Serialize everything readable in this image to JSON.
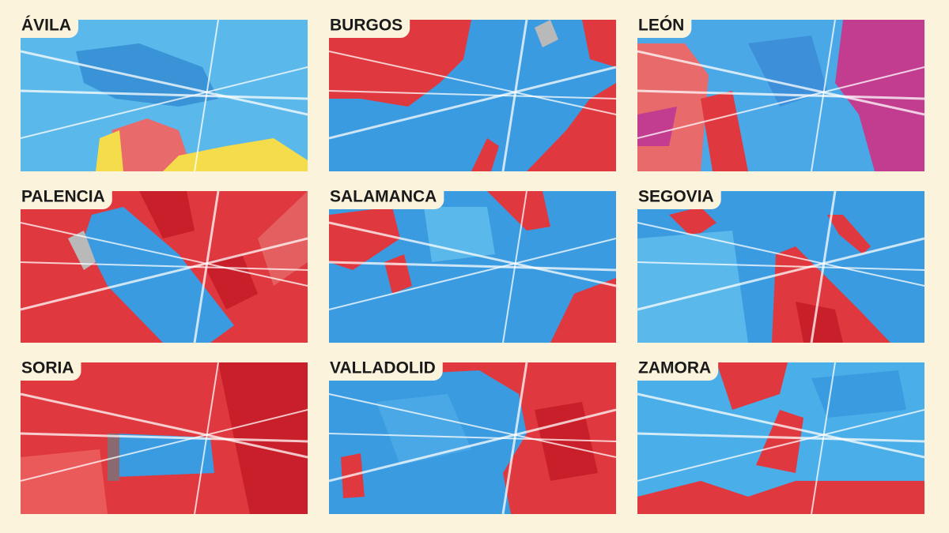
{
  "maps": [
    {
      "label": "ÁVILA"
    },
    {
      "label": "BURGOS"
    },
    {
      "label": "LEÓN"
    },
    {
      "label": "PALENCIA"
    },
    {
      "label": "SALAMANCA"
    },
    {
      "label": "SEGOVIA"
    },
    {
      "label": "SORIA"
    },
    {
      "label": "VALLADOLID"
    },
    {
      "label": "ZAMORA"
    }
  ]
}
